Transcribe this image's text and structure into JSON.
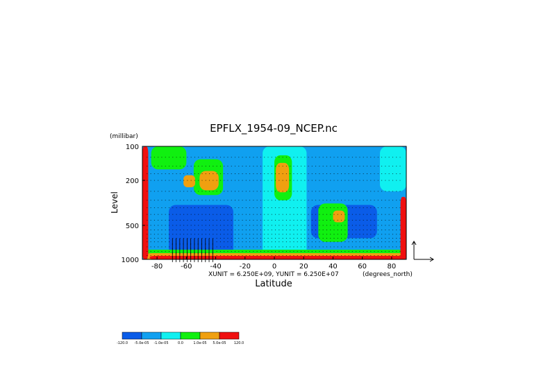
{
  "chart_data": {
    "type": "heatmap",
    "title": "EPFLX_1954-09_NCEP.nc",
    "xlabel": "Latitude",
    "ylabel": "Level",
    "y_unit": "(millibar)",
    "x_unit": "(degrees_north)",
    "vector_scale_text": "XUNIT = 6.250E+09, YUNIT = 6.250E+07",
    "xlim": [
      -90,
      90
    ],
    "ylim": [
      1000,
      100
    ],
    "y_scale": "log",
    "x_ticks": [
      "-80",
      "-60",
      "-40",
      "-20",
      "0",
      "20",
      "40",
      "60",
      "80"
    ],
    "x_tick_values": [
      -80,
      -60,
      -40,
      -20,
      0,
      20,
      40,
      60,
      80
    ],
    "y_ticks": [
      "100",
      "200",
      "500",
      "1000"
    ],
    "y_tick_values": [
      100,
      200,
      500,
      1000
    ],
    "colorbar": {
      "labels": [
        "-120.0",
        "-5.0e-05",
        "-1.0e-05",
        "0.0",
        "1.0e-05",
        "5.0e-05",
        "120.0"
      ],
      "colors": [
        "#0a5ce8",
        "#10a0f0",
        "#10f0f0",
        "#10f010",
        "#f0a010",
        "#f01010"
      ]
    },
    "colors": {
      "strong_negative": "#0a5ce8",
      "negative": "#10a0f0",
      "weak_negative": "#10f0f0",
      "weak_positive": "#10f010",
      "positive": "#f0a010",
      "strong_positive": "#f01010"
    },
    "series": [
      {
        "type": "filled_contour",
        "regions": [
          {
            "level": "strong_negative",
            "lat": [
              -72,
              -28
            ],
            "p": [
              330,
              1000
            ]
          },
          {
            "level": "strong_negative",
            "lat": [
              25,
              70
            ],
            "p": [
              330,
              650
            ]
          },
          {
            "level": "weak_negative",
            "lat": [
              -8,
              22
            ],
            "p": [
              100,
              1000
            ]
          },
          {
            "level": "weak_negative",
            "lat": [
              72,
              90
            ],
            "p": [
              100,
              250
            ]
          },
          {
            "level": "weak_positive",
            "lat": [
              -84,
              -60
            ],
            "p": [
              100,
              160
            ]
          },
          {
            "level": "weak_positive",
            "lat": [
              -55,
              -35
            ],
            "p": [
              130,
              270
            ]
          },
          {
            "level": "weak_positive",
            "lat": [
              0,
              12
            ],
            "p": [
              120,
              300
            ]
          },
          {
            "level": "weak_positive",
            "lat": [
              30,
              50
            ],
            "p": [
              320,
              700
            ]
          },
          {
            "level": "weak_positive",
            "lat": [
              -90,
              90
            ],
            "p": [
              820,
              1000
            ]
          },
          {
            "level": "positive",
            "lat": [
              -51,
              -38
            ],
            "p": [
              165,
              245
            ]
          },
          {
            "level": "positive",
            "lat": [
              1,
              10
            ],
            "p": [
              140,
              255
            ]
          },
          {
            "level": "positive",
            "lat": [
              40,
              48
            ],
            "p": [
              370,
              470
            ]
          },
          {
            "level": "positive",
            "lat": [
              -62,
              -54
            ],
            "p": [
              180,
              230
            ]
          },
          {
            "level": "positive",
            "lat": [
              -88,
              90
            ],
            "p": [
              880,
              1000
            ]
          },
          {
            "level": "strong_positive",
            "lat": [
              -90,
              -86
            ],
            "p": [
              100,
              1000
            ]
          },
          {
            "level": "strong_positive",
            "lat": [
              86,
              90
            ],
            "p": [
              280,
              1000
            ]
          },
          {
            "level": "strong_positive",
            "lat": [
              -85,
              90
            ],
            "p": [
              930,
              1000
            ]
          }
        ]
      },
      {
        "type": "vectors",
        "max_arrow_region": {
          "lat": [
            -70,
            -40
          ],
          "p": [
            700,
            1000
          ]
        }
      }
    ]
  }
}
